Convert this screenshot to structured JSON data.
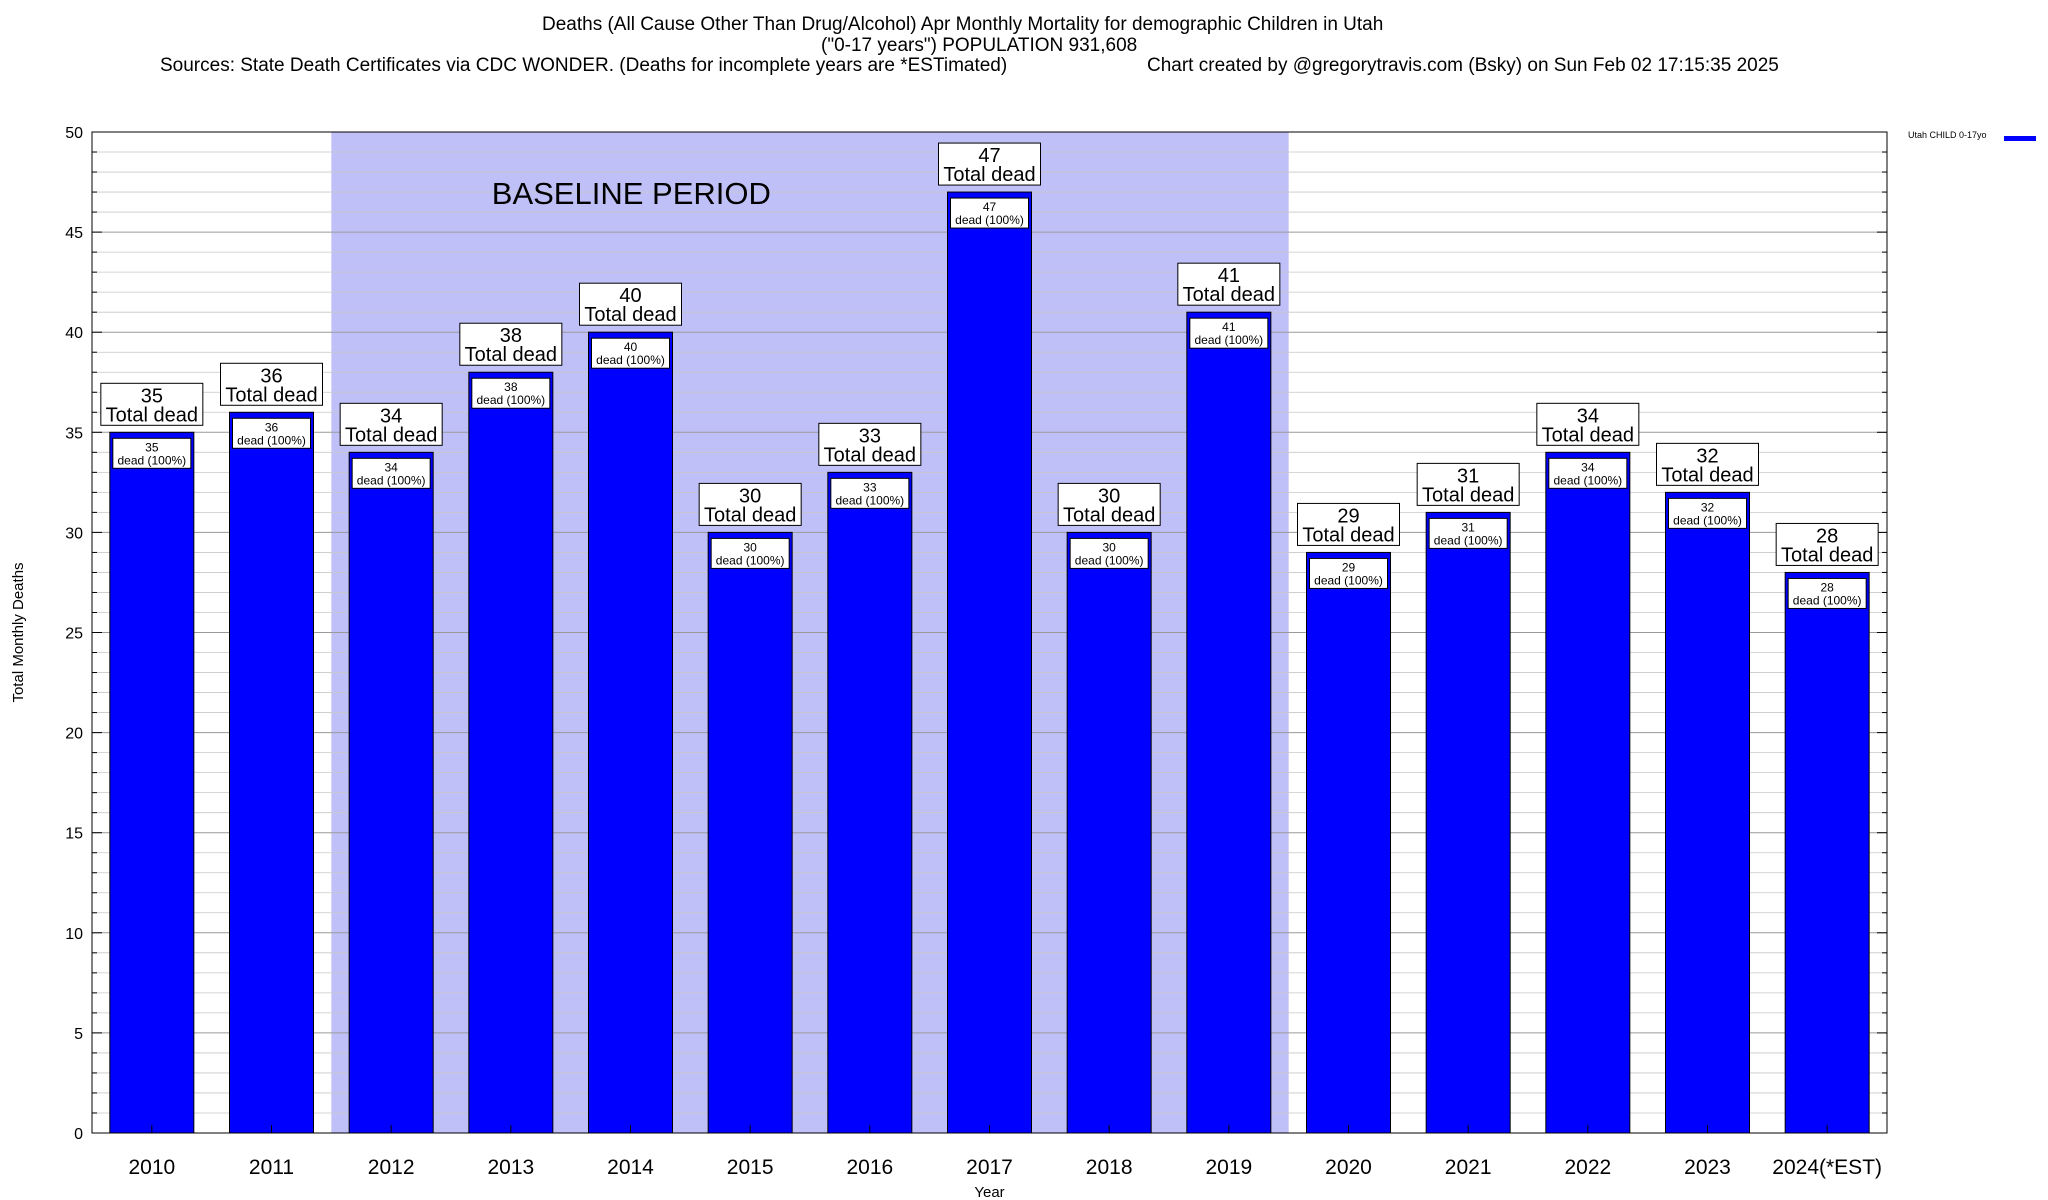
{
  "header": {
    "title_line1": "Deaths (All Cause Other Than Drug/Alcohol) Apr Monthly Mortality for demographic Children in Utah",
    "title_line2": "(\"0-17 years\") POPULATION 931,608",
    "sources": "Sources: State Death Certificates via CDC WONDER. (Deaths for incomplete years are *ESTimated)",
    "credit": "Chart created by @gregorytravis.com (Bsky) on Sun Feb 02 17:15:35 2025"
  },
  "chart_data": {
    "type": "bar",
    "xlabel": "Year",
    "ylabel": "Total Monthly Deaths",
    "ylim": [
      0,
      50
    ],
    "y_ticks": [
      0,
      5,
      10,
      15,
      20,
      25,
      30,
      35,
      40,
      45,
      50
    ],
    "grid": true,
    "categories": [
      "2010",
      "2011",
      "2012",
      "2013",
      "2014",
      "2015",
      "2016",
      "2017",
      "2018",
      "2019",
      "2020",
      "2021",
      "2022",
      "2023",
      "2024(*EST)"
    ],
    "series": [
      {
        "name": "Utah CHILD 0-17yo",
        "values": [
          35,
          36,
          34,
          38,
          40,
          30,
          33,
          47,
          30,
          41,
          29,
          31,
          34,
          32,
          28
        ]
      }
    ],
    "bar_label_top_suffix": "Total dead",
    "bar_label_inner_suffix": "dead (100%)",
    "baseline_period": {
      "label": "BASELINE PERIOD",
      "start": "2012",
      "end": "2019"
    },
    "legend_position": "top-right",
    "colors": {
      "bar": "#0000ff",
      "baseline_shade": "#c0c0f8",
      "grid": "#b0b0b0"
    }
  }
}
